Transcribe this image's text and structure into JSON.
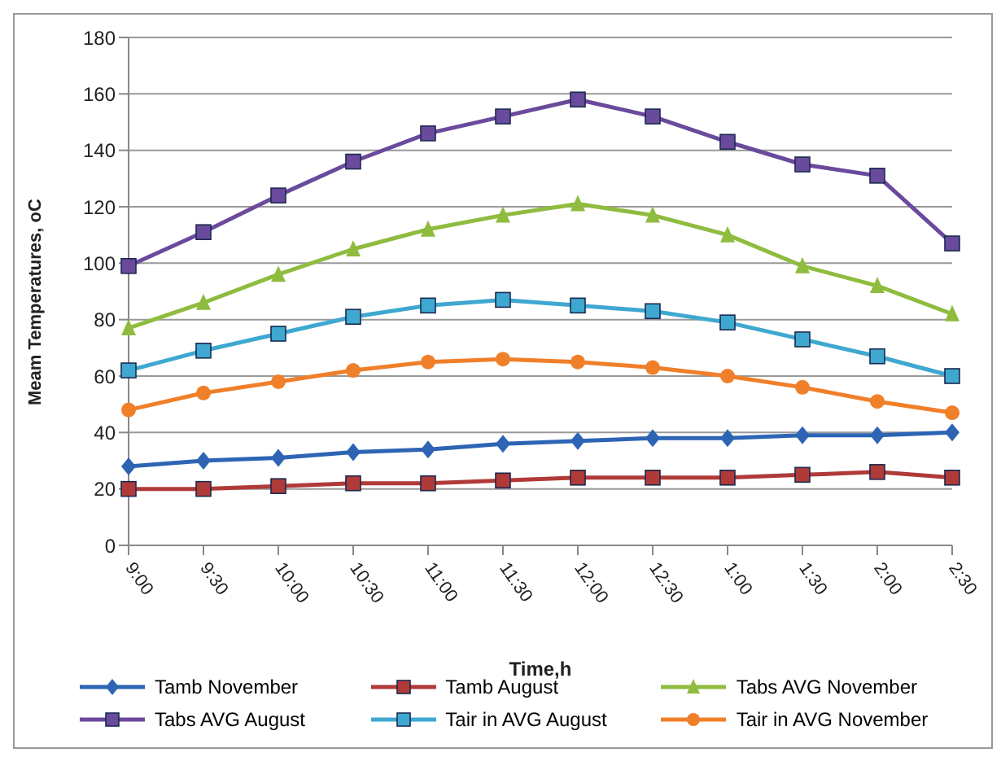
{
  "chart_data": {
    "type": "line",
    "xlabel": "Time,h",
    "ylabel": "Meam Temperatures, oC",
    "categories": [
      "9:00",
      "9:30",
      "10:00",
      "10:30",
      "11:00",
      "11:30",
      "12:00",
      "12:30",
      "1:00",
      "1:30",
      "2:00",
      "2:30"
    ],
    "ylim": [
      0,
      180
    ],
    "yticks": [
      0,
      20,
      40,
      60,
      80,
      100,
      120,
      140,
      160,
      180
    ],
    "grid": "y",
    "legend": "bottom",
    "series": [
      {
        "name": "Tamb November",
        "color": "#2e64b4",
        "marker": "diamond",
        "values": [
          28,
          30,
          31,
          33,
          34,
          36,
          37,
          38,
          38,
          39,
          39,
          40
        ]
      },
      {
        "name": "Tamb August",
        "color": "#b03a38",
        "marker": "square",
        "values": [
          20,
          20,
          21,
          22,
          22,
          23,
          24,
          24,
          24,
          25,
          26,
          24
        ]
      },
      {
        "name": "Tabs AVG November",
        "color": "#8fbc3f",
        "marker": "triangle",
        "values": [
          77,
          86,
          96,
          105,
          112,
          117,
          121,
          117,
          110,
          99,
          92,
          82
        ]
      },
      {
        "name": "Tabs AVG August",
        "color": "#6a4a9c",
        "marker": "square",
        "values": [
          99,
          111,
          124,
          136,
          146,
          152,
          158,
          152,
          143,
          135,
          131,
          107
        ]
      },
      {
        "name": "Tair in AVG August",
        "color": "#3fa8d0",
        "marker": "square",
        "values": [
          62,
          69,
          75,
          81,
          85,
          87,
          85,
          83,
          79,
          73,
          67,
          60
        ]
      },
      {
        "name": "Tair in AVG November",
        "color": "#f07f2a",
        "marker": "circle",
        "values": [
          48,
          54,
          58,
          62,
          65,
          66,
          65,
          63,
          60,
          56,
          51,
          47
        ]
      }
    ]
  }
}
